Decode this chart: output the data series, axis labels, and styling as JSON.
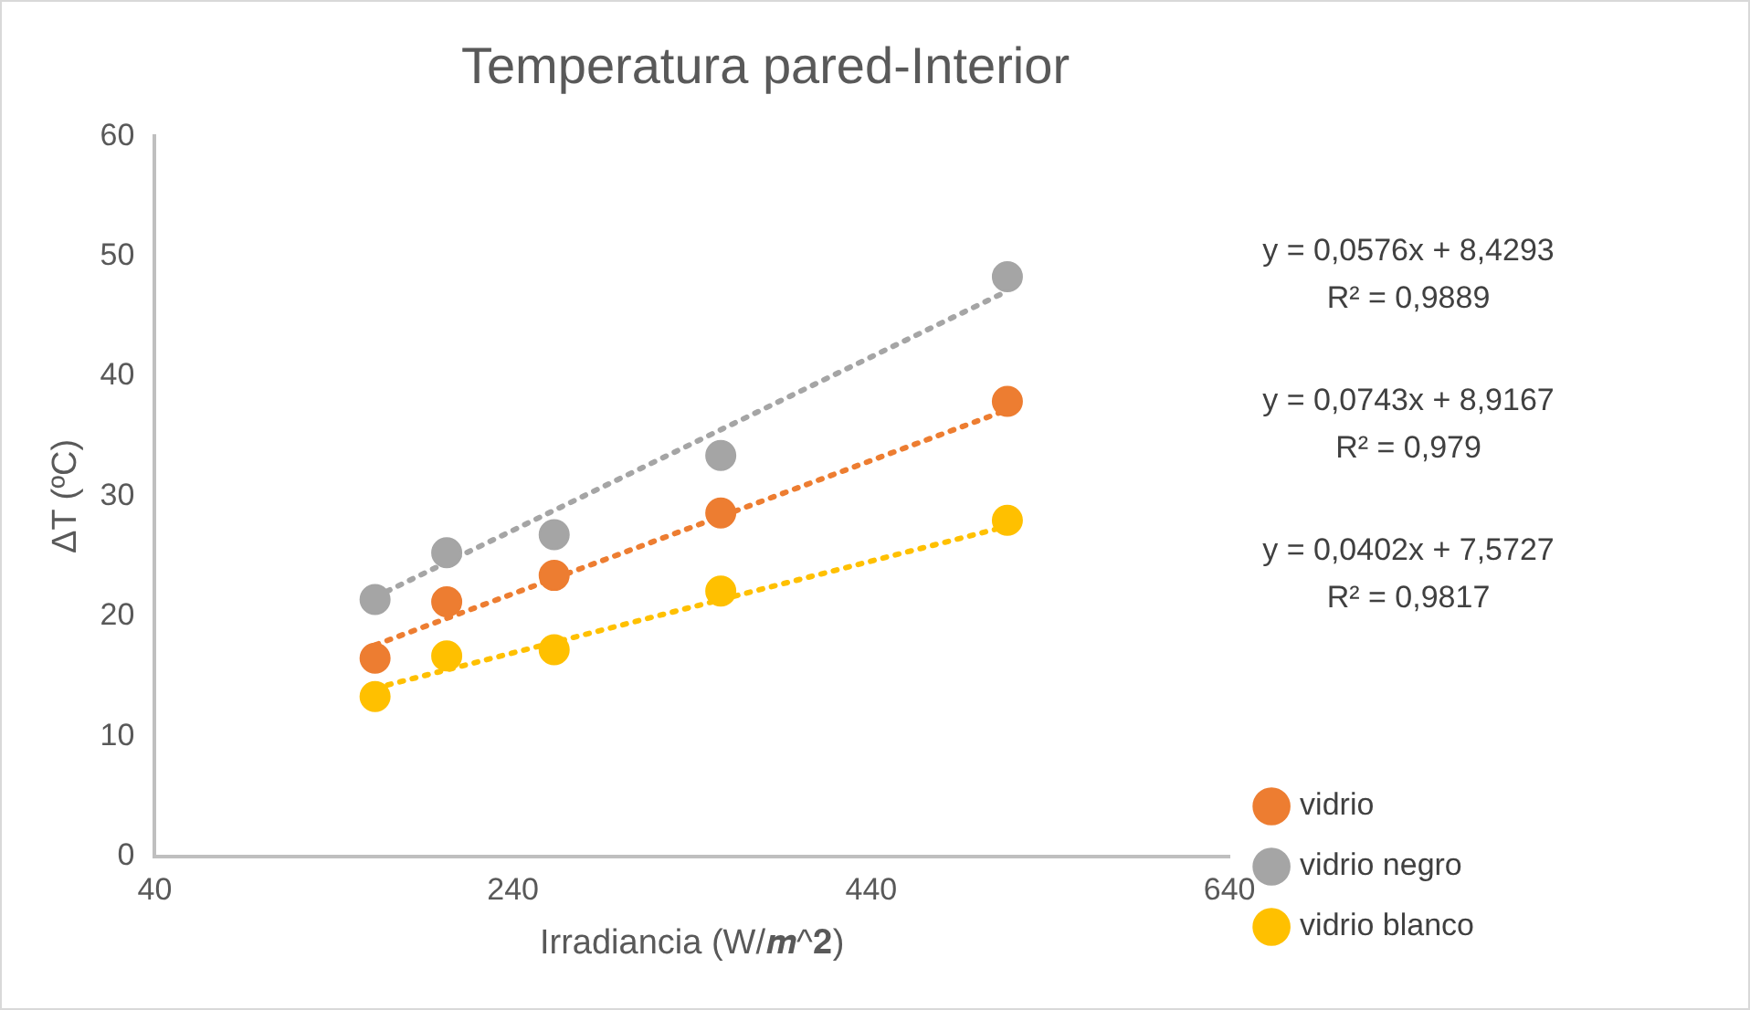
{
  "chart_data": {
    "type": "scatter",
    "title": "Temperatura pared-Interior",
    "xlabel": "Irradiancia (W/𝒎^𝟐)",
    "ylabel": "ΔT (ºC)",
    "xlim": [
      40,
      640
    ],
    "xticks": [
      40,
      240,
      440,
      640
    ],
    "ylim": [
      0,
      60
    ],
    "yticks": [
      0,
      10,
      20,
      30,
      40,
      50,
      60
    ],
    "grid": false,
    "legend": "right",
    "marker": "circle",
    "series": [
      {
        "name": "vidrio",
        "color": "#ed7d31",
        "x": [
          163,
          203,
          263,
          356,
          516
        ],
        "values": [
          16.5,
          21.2,
          23.4,
          28.6,
          37.9
        ]
      },
      {
        "name": "vidrio negro",
        "color": "#a5a5a5",
        "x": [
          163,
          203,
          263,
          356,
          516
        ],
        "values": [
          21.4,
          25.3,
          26.8,
          33.4,
          48.3
        ]
      },
      {
        "name": "vidrio blanco",
        "color": "#ffc000",
        "x": [
          163,
          203,
          263,
          356,
          516
        ],
        "values": [
          13.3,
          16.7,
          17.2,
          22.1,
          28.0
        ]
      },
      {
        "type": "line",
        "color": "#ed7d31",
        "line_style": "dotted",
        "marker": "none",
        "x": [
          163,
          516
        ],
        "values": [
          17.6,
          37.2
        ]
      },
      {
        "type": "line",
        "color": "#a5a5a5",
        "line_style": "dotted",
        "marker": "none",
        "x": [
          163,
          516
        ],
        "values": [
          21.6,
          47.1
        ]
      },
      {
        "type": "line",
        "color": "#ffc000",
        "line_style": "dotted",
        "marker": "none",
        "x": [
          163,
          516
        ],
        "values": [
          14.0,
          27.5
        ]
      }
    ],
    "annotations": [
      "y = 0,0576x + 8,4293\nR² = 0,9889",
      "y = 0,0743x + 8,9167\nR² = 0,979",
      "y = 0,0402x + 7,5727\nR² = 0,9817"
    ]
  }
}
